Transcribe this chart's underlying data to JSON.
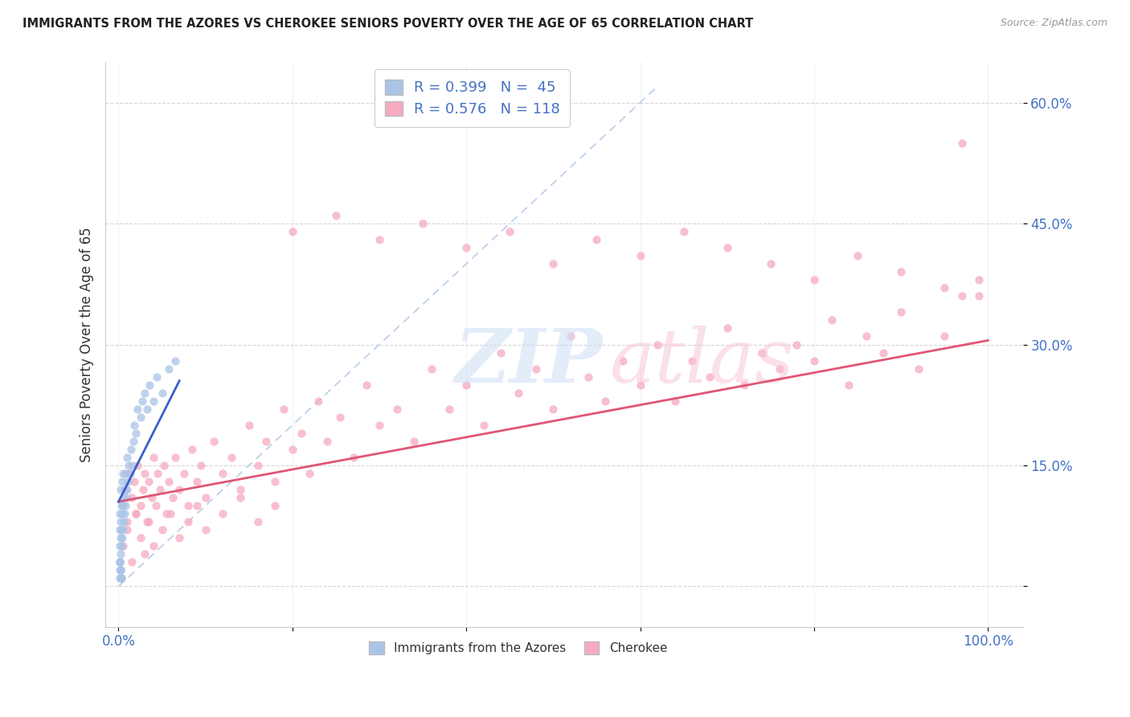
{
  "title": "IMMIGRANTS FROM THE AZORES VS CHEROKEE SENIORS POVERTY OVER THE AGE OF 65 CORRELATION CHART",
  "source": "Source: ZipAtlas.com",
  "ylabel": "Seniors Poverty Over the Age of 65",
  "color_azores": "#aac4e8",
  "color_cherokee": "#f5aabf",
  "trendline_azores": "#3a5fcd",
  "trendline_cherokee": "#e05575",
  "diagonal_color": "#b0c8e8",
  "legend_label1": "R = 0.399   N =  45",
  "legend_label2": "R = 0.576   N = 118",
  "legend_group1": "Immigrants from the Azores",
  "legend_group2": "Cherokee",
  "text_color_blue": "#4472c4",
  "ytick_labels": [
    "",
    "15.0%",
    "30.0%",
    "45.0%",
    "60.0%"
  ],
  "ytick_vals": [
    0.0,
    0.15,
    0.3,
    0.45,
    0.6
  ],
  "xtick_labels": [
    "0.0%",
    "",
    "",
    "",
    "",
    "100.0%"
  ],
  "xtick_vals": [
    0.0,
    0.2,
    0.4,
    0.6,
    0.8,
    1.0
  ],
  "xlim": [
    -0.015,
    1.04
  ],
  "ylim": [
    -0.05,
    0.65
  ],
  "azores_x": [
    0.001,
    0.001,
    0.001,
    0.001,
    0.002,
    0.002,
    0.002,
    0.002,
    0.003,
    0.003,
    0.003,
    0.004,
    0.004,
    0.004,
    0.005,
    0.005,
    0.005,
    0.006,
    0.006,
    0.007,
    0.007,
    0.008,
    0.008,
    0.009,
    0.01,
    0.01,
    0.011,
    0.012,
    0.013,
    0.014,
    0.015,
    0.017,
    0.018,
    0.02,
    0.022,
    0.025,
    0.027,
    0.03,
    0.033,
    0.036,
    0.04,
    0.044,
    0.05,
    0.058,
    0.065
  ],
  "azores_y": [
    0.03,
    0.05,
    0.07,
    0.09,
    0.04,
    0.06,
    0.08,
    0.12,
    0.05,
    0.07,
    0.1,
    0.06,
    0.09,
    0.13,
    0.07,
    0.1,
    0.14,
    0.08,
    0.11,
    0.09,
    0.12,
    0.1,
    0.14,
    0.11,
    0.12,
    0.16,
    0.13,
    0.15,
    0.14,
    0.17,
    0.15,
    0.18,
    0.2,
    0.19,
    0.22,
    0.21,
    0.23,
    0.24,
    0.22,
    0.25,
    0.23,
    0.26,
    0.24,
    0.27,
    0.28
  ],
  "azores_extra_y_low": [
    0.01,
    0.02,
    0.01,
    0.03,
    0.02,
    0.01,
    0.02,
    0.03,
    0.01,
    0.02
  ],
  "azores_extra_x_low": [
    0.001,
    0.001,
    0.002,
    0.001,
    0.002,
    0.003,
    0.002,
    0.001,
    0.003,
    0.002
  ],
  "cherokee_x": [
    0.005,
    0.008,
    0.01,
    0.012,
    0.015,
    0.018,
    0.02,
    0.022,
    0.025,
    0.028,
    0.03,
    0.033,
    0.035,
    0.038,
    0.04,
    0.043,
    0.045,
    0.048,
    0.052,
    0.055,
    0.058,
    0.062,
    0.065,
    0.07,
    0.075,
    0.08,
    0.085,
    0.09,
    0.095,
    0.1,
    0.11,
    0.12,
    0.13,
    0.14,
    0.15,
    0.16,
    0.17,
    0.18,
    0.19,
    0.2,
    0.21,
    0.22,
    0.23,
    0.24,
    0.255,
    0.27,
    0.285,
    0.3,
    0.32,
    0.34,
    0.36,
    0.38,
    0.4,
    0.42,
    0.44,
    0.46,
    0.48,
    0.5,
    0.52,
    0.54,
    0.56,
    0.58,
    0.6,
    0.62,
    0.64,
    0.66,
    0.68,
    0.7,
    0.72,
    0.74,
    0.76,
    0.78,
    0.8,
    0.82,
    0.84,
    0.86,
    0.88,
    0.9,
    0.92,
    0.95,
    0.97,
    0.99,
    0.005,
    0.01,
    0.015,
    0.02,
    0.025,
    0.03,
    0.035,
    0.04,
    0.05,
    0.06,
    0.07,
    0.08,
    0.09,
    0.1,
    0.12,
    0.14,
    0.16,
    0.18,
    0.2,
    0.25,
    0.3,
    0.35,
    0.4,
    0.45,
    0.5,
    0.55,
    0.6,
    0.65,
    0.7,
    0.75,
    0.8,
    0.85,
    0.9,
    0.95,
    0.97,
    0.99
  ],
  "cherokee_y": [
    0.1,
    0.12,
    0.08,
    0.14,
    0.11,
    0.13,
    0.09,
    0.15,
    0.1,
    0.12,
    0.14,
    0.08,
    0.13,
    0.11,
    0.16,
    0.1,
    0.14,
    0.12,
    0.15,
    0.09,
    0.13,
    0.11,
    0.16,
    0.12,
    0.14,
    0.1,
    0.17,
    0.13,
    0.15,
    0.11,
    0.18,
    0.14,
    0.16,
    0.12,
    0.2,
    0.15,
    0.18,
    0.13,
    0.22,
    0.17,
    0.19,
    0.14,
    0.23,
    0.18,
    0.21,
    0.16,
    0.25,
    0.2,
    0.22,
    0.18,
    0.27,
    0.22,
    0.25,
    0.2,
    0.29,
    0.24,
    0.27,
    0.22,
    0.31,
    0.26,
    0.23,
    0.28,
    0.25,
    0.3,
    0.23,
    0.28,
    0.26,
    0.32,
    0.25,
    0.29,
    0.27,
    0.3,
    0.28,
    0.33,
    0.25,
    0.31,
    0.29,
    0.34,
    0.27,
    0.31,
    0.36,
    0.38,
    0.05,
    0.07,
    0.03,
    0.09,
    0.06,
    0.04,
    0.08,
    0.05,
    0.07,
    0.09,
    0.06,
    0.08,
    0.1,
    0.07,
    0.09,
    0.11,
    0.08,
    0.1,
    0.44,
    0.46,
    0.43,
    0.45,
    0.42,
    0.44,
    0.4,
    0.43,
    0.41,
    0.44,
    0.42,
    0.4,
    0.38,
    0.41,
    0.39,
    0.37,
    0.55,
    0.36
  ],
  "azores_trend_x": [
    0.0,
    0.07
  ],
  "azores_trend_y": [
    0.105,
    0.255
  ],
  "cherokee_trend_x": [
    0.0,
    1.0
  ],
  "cherokee_trend_y": [
    0.105,
    0.305
  ]
}
